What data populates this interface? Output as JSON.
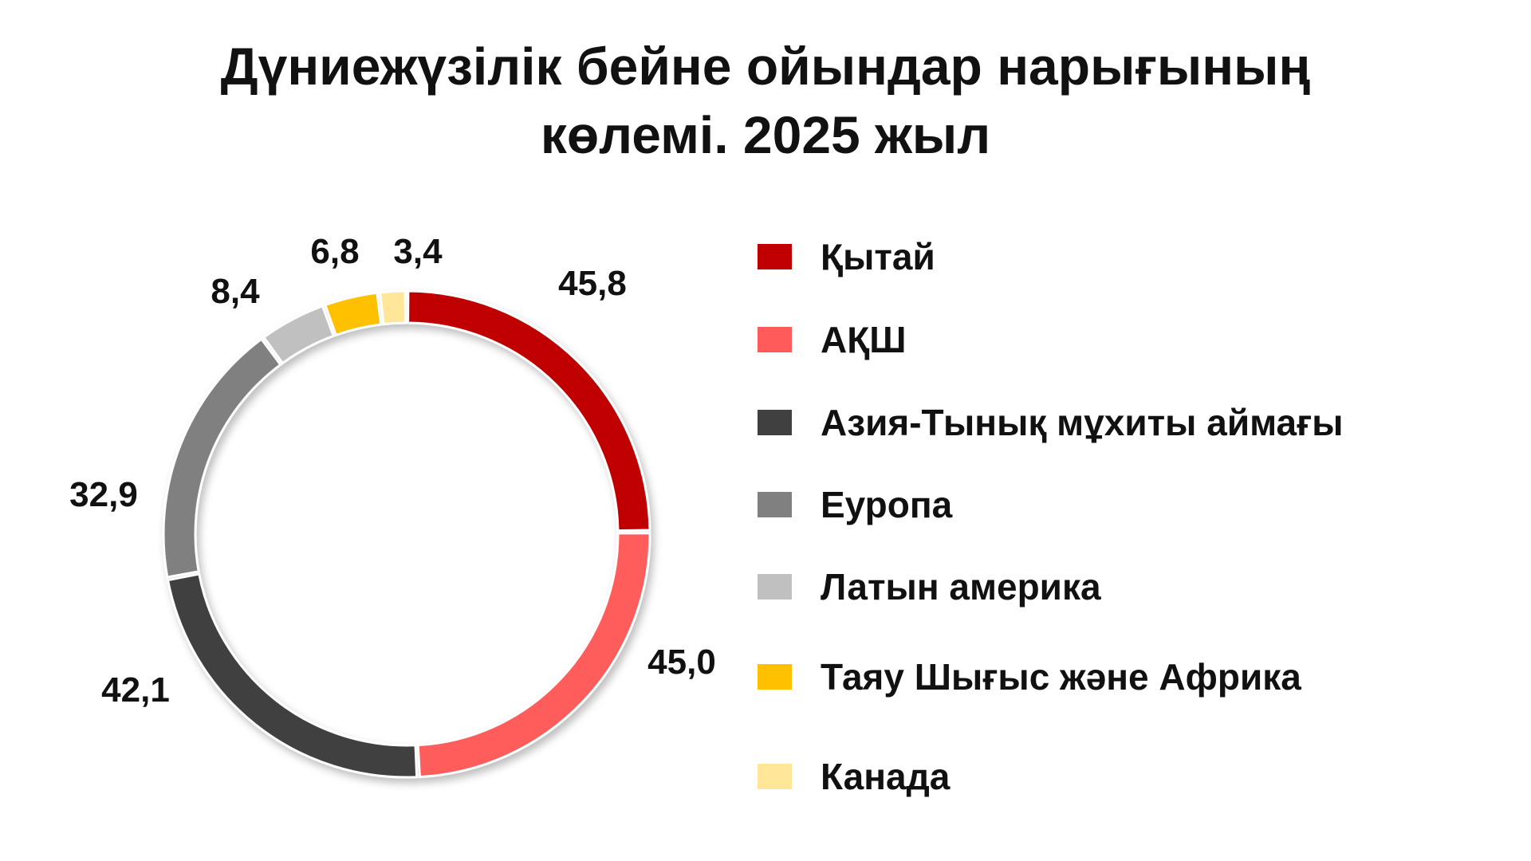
{
  "title": {
    "line1": "Дүниежүзілік бейне ойындар нарығының",
    "line2": "көлемі. 2025 жыл"
  },
  "chart_data": {
    "type": "pie",
    "subtype": "donut",
    "title": "Дүниежүзілік бейне ойындар нарығының көлемі. 2025 жыл",
    "legend_position": "right",
    "slices": [
      {
        "label": "Қытай",
        "value": 45.8,
        "value_label": "45,8",
        "color": "#C00000"
      },
      {
        "label": "АҚШ",
        "value": 45.0,
        "value_label": "45,0",
        "color": "#FF5B5B"
      },
      {
        "label": "Азия-Тынық мұхиты аймағы",
        "value": 42.1,
        "value_label": "42,1",
        "color": "#404040"
      },
      {
        "label": "Еуропа",
        "value": 32.9,
        "value_label": "32,9",
        "color": "#808080"
      },
      {
        "label": "Латын америка",
        "value": 8.4,
        "value_label": "8,4",
        "color": "#C0C0C0"
      },
      {
        "label": "Таяу Шығыс және Африка",
        "value": 6.8,
        "value_label": "6,8",
        "color": "#FFC000"
      },
      {
        "label": "Канада",
        "value": 3.4,
        "value_label": "3,4",
        "color": "#FFE699"
      }
    ]
  }
}
